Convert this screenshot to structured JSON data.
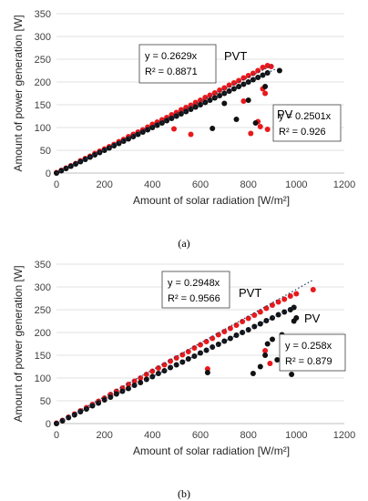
{
  "chart_data": [
    {
      "type": "scatter",
      "panel": "(a)",
      "xlabel": "Amount of solar radiation [W/m²]",
      "ylabel": "Amount of power generation [W]",
      "xlim": [
        0,
        1200
      ],
      "ylim": [
        0,
        350
      ],
      "xticks": [
        "0",
        "200",
        "400",
        "600",
        "800",
        "1000",
        "1200"
      ],
      "yticks": [
        "0",
        "50",
        "100",
        "150",
        "200",
        "250",
        "300",
        "350"
      ],
      "grid": "horizontal",
      "series": [
        {
          "name": "PVT",
          "color": "#e8191c",
          "trend": {
            "slope": 0.2629,
            "r2": 0.8871,
            "x_end": 900
          },
          "equation": "y = 0.2629x",
          "r2_label": "R² = 0.8871",
          "points": [
            [
              0,
              1
            ],
            [
              20,
              6
            ],
            [
              40,
              11
            ],
            [
              60,
              16
            ],
            [
              80,
              21
            ],
            [
              100,
              27
            ],
            [
              120,
              32
            ],
            [
              140,
              37
            ],
            [
              160,
              43
            ],
            [
              180,
              48
            ],
            [
              200,
              53
            ],
            [
              220,
              58
            ],
            [
              240,
              63
            ],
            [
              260,
              69
            ],
            [
              280,
              74
            ],
            [
              300,
              80
            ],
            [
              320,
              85
            ],
            [
              340,
              90
            ],
            [
              360,
              95
            ],
            [
              380,
              101
            ],
            [
              400,
              107
            ],
            [
              420,
              112
            ],
            [
              440,
              117
            ],
            [
              460,
              122
            ],
            [
              480,
              128
            ],
            [
              500,
              133
            ],
            [
              520,
              139
            ],
            [
              540,
              144
            ],
            [
              560,
              149
            ],
            [
              580,
              155
            ],
            [
              600,
              160
            ],
            [
              620,
              166
            ],
            [
              640,
              171
            ],
            [
              660,
              176
            ],
            [
              680,
              182
            ],
            [
              700,
              187
            ],
            [
              720,
              193
            ],
            [
              740,
              198
            ],
            [
              760,
              203
            ],
            [
              780,
              209
            ],
            [
              800,
              214
            ],
            [
              820,
              219
            ],
            [
              840,
              225
            ],
            [
              860,
              232
            ],
            [
              880,
              236
            ],
            [
              895,
              234
            ],
            [
              490,
              97
            ],
            [
              560,
              85
            ],
            [
              780,
              158
            ],
            [
              810,
              87
            ],
            [
              840,
              113
            ],
            [
              850,
              102
            ],
            [
              860,
              185
            ],
            [
              870,
              175
            ],
            [
              880,
              96
            ]
          ]
        },
        {
          "name": "PV",
          "color": "#111111",
          "trend": {
            "slope": 0.2501,
            "r2": 0.926,
            "x_end": 920
          },
          "equation": "y = 0.2501x",
          "r2_label": "R² = 0.926",
          "points": [
            [
              0,
              0
            ],
            [
              20,
              5
            ],
            [
              40,
              10
            ],
            [
              60,
              15
            ],
            [
              80,
              20
            ],
            [
              100,
              25
            ],
            [
              120,
              30
            ],
            [
              140,
              35
            ],
            [
              160,
              40
            ],
            [
              180,
              45
            ],
            [
              200,
              50
            ],
            [
              220,
              55
            ],
            [
              240,
              60
            ],
            [
              260,
              65
            ],
            [
              280,
              70
            ],
            [
              300,
              75
            ],
            [
              320,
              80
            ],
            [
              340,
              85
            ],
            [
              360,
              90
            ],
            [
              380,
              95
            ],
            [
              400,
              100
            ],
            [
              420,
              105
            ],
            [
              440,
              110
            ],
            [
              460,
              115
            ],
            [
              480,
              120
            ],
            [
              500,
              125
            ],
            [
              520,
              130
            ],
            [
              540,
              135
            ],
            [
              560,
              140
            ],
            [
              580,
              145
            ],
            [
              600,
              150
            ],
            [
              620,
              155
            ],
            [
              640,
              160
            ],
            [
              660,
              165
            ],
            [
              680,
              170
            ],
            [
              700,
              175
            ],
            [
              720,
              180
            ],
            [
              740,
              185
            ],
            [
              760,
              190
            ],
            [
              780,
              195
            ],
            [
              800,
              200
            ],
            [
              820,
              205
            ],
            [
              840,
              210
            ],
            [
              860,
              215
            ],
            [
              880,
              220
            ],
            [
              930,
              225
            ],
            [
              650,
              98
            ],
            [
              700,
              153
            ],
            [
              750,
              118
            ],
            [
              800,
              160
            ],
            [
              830,
              110
            ],
            [
              870,
              190
            ]
          ]
        }
      ]
    },
    {
      "type": "scatter",
      "panel": "(b)",
      "xlabel": "Amount of solar radiation [W/m²]",
      "ylabel": "Amount of power generation [W]",
      "xlim": [
        0,
        1200
      ],
      "ylim": [
        0,
        350
      ],
      "xticks": [
        "0",
        "200",
        "400",
        "600",
        "800",
        "1000",
        "1200"
      ],
      "yticks": [
        "0",
        "50",
        "100",
        "150",
        "200",
        "250",
        "300",
        "350"
      ],
      "grid": "horizontal",
      "series": [
        {
          "name": "PVT",
          "color": "#e8191c",
          "trend": {
            "slope": 0.2948,
            "r2": 0.9566,
            "x_end": 1070
          },
          "equation": "y = 0.2948x",
          "r2_label": "R² = 0.9566",
          "points": [
            [
              0,
              1
            ],
            [
              25,
              7
            ],
            [
              50,
              14
            ],
            [
              75,
              21
            ],
            [
              100,
              28
            ],
            [
              125,
              35
            ],
            [
              150,
              42
            ],
            [
              175,
              49
            ],
            [
              200,
              56
            ],
            [
              225,
              64
            ],
            [
              250,
              71
            ],
            [
              275,
              78
            ],
            [
              300,
              86
            ],
            [
              325,
              93
            ],
            [
              350,
              100
            ],
            [
              375,
              108
            ],
            [
              400,
              115
            ],
            [
              425,
              122
            ],
            [
              450,
              129
            ],
            [
              475,
              137
            ],
            [
              500,
              144
            ],
            [
              525,
              151
            ],
            [
              550,
              158
            ],
            [
              575,
              166
            ],
            [
              600,
              173
            ],
            [
              625,
              180
            ],
            [
              650,
              187
            ],
            [
              675,
              195
            ],
            [
              700,
              202
            ],
            [
              725,
              209
            ],
            [
              750,
              216
            ],
            [
              775,
              224
            ],
            [
              800,
              231
            ],
            [
              825,
              238
            ],
            [
              850,
              245
            ],
            [
              875,
              253
            ],
            [
              900,
              260
            ],
            [
              925,
              267
            ],
            [
              950,
              273
            ],
            [
              975,
              280
            ],
            [
              1000,
              285
            ],
            [
              1070,
              294
            ],
            [
              630,
              120
            ],
            [
              870,
              160
            ],
            [
              890,
              132
            ]
          ]
        },
        {
          "name": "PV",
          "color": "#111111",
          "trend": {
            "slope": 0.258,
            "r2": 0.879,
            "x_end": 1000
          },
          "equation": "y = 0.258x",
          "r2_label": "R² = 0.879",
          "points": [
            [
              0,
              0
            ],
            [
              25,
              6
            ],
            [
              50,
              13
            ],
            [
              75,
              19
            ],
            [
              100,
              26
            ],
            [
              125,
              32
            ],
            [
              150,
              39
            ],
            [
              175,
              45
            ],
            [
              200,
              52
            ],
            [
              225,
              58
            ],
            [
              250,
              65
            ],
            [
              275,
              71
            ],
            [
              300,
              77
            ],
            [
              325,
              84
            ],
            [
              350,
              90
            ],
            [
              375,
              97
            ],
            [
              400,
              103
            ],
            [
              425,
              110
            ],
            [
              450,
              116
            ],
            [
              475,
              123
            ],
            [
              500,
              129
            ],
            [
              525,
              135
            ],
            [
              550,
              142
            ],
            [
              575,
              148
            ],
            [
              600,
              155
            ],
            [
              625,
              161
            ],
            [
              650,
              168
            ],
            [
              675,
              174
            ],
            [
              700,
              181
            ],
            [
              725,
              187
            ],
            [
              750,
              194
            ],
            [
              775,
              200
            ],
            [
              800,
              206
            ],
            [
              825,
              213
            ],
            [
              850,
              219
            ],
            [
              875,
              226
            ],
            [
              900,
              232
            ],
            [
              925,
              239
            ],
            [
              950,
              245
            ],
            [
              975,
              250
            ],
            [
              990,
              255
            ],
            [
              630,
              112
            ],
            [
              820,
              110
            ],
            [
              850,
              125
            ],
            [
              870,
              150
            ],
            [
              880,
              175
            ],
            [
              900,
              185
            ],
            [
              920,
              140
            ],
            [
              940,
              195
            ],
            [
              960,
              130
            ],
            [
              980,
              108
            ],
            [
              990,
              225
            ],
            [
              1000,
              232
            ]
          ]
        }
      ]
    }
  ]
}
